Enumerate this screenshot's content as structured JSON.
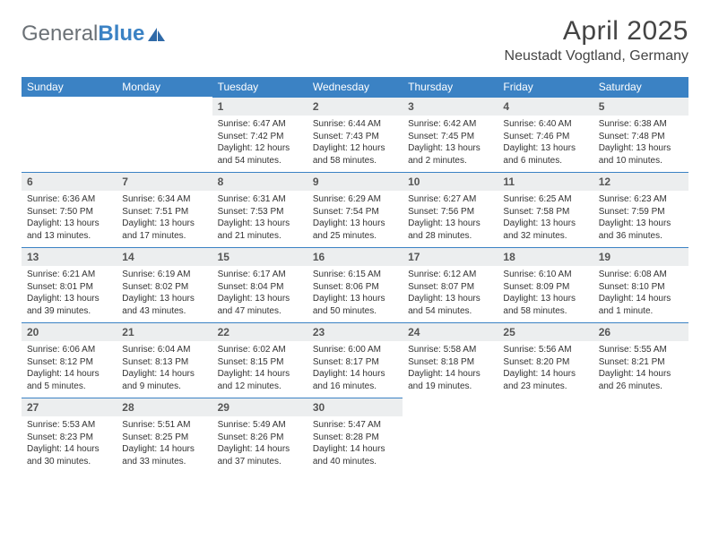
{
  "logo": {
    "text_general": "General",
    "text_blue": "Blue",
    "icon_color": "#2f6aa8"
  },
  "title": "April 2025",
  "location": "Neustadt Vogtland, Germany",
  "colors": {
    "header_bg": "#3b82c4",
    "header_text": "#ffffff",
    "daynum_bg": "#eceeef",
    "daynum_border": "#3b82c4",
    "body_bg": "#ffffff",
    "text": "#333333",
    "logo_gray": "#6b7176",
    "logo_blue": "#3b82c4"
  },
  "weekdays": [
    "Sunday",
    "Monday",
    "Tuesday",
    "Wednesday",
    "Thursday",
    "Friday",
    "Saturday"
  ],
  "rows": [
    [
      null,
      null,
      {
        "n": "1",
        "sr": "6:47 AM",
        "ss": "7:42 PM",
        "dl": "12 hours and 54 minutes."
      },
      {
        "n": "2",
        "sr": "6:44 AM",
        "ss": "7:43 PM",
        "dl": "12 hours and 58 minutes."
      },
      {
        "n": "3",
        "sr": "6:42 AM",
        "ss": "7:45 PM",
        "dl": "13 hours and 2 minutes."
      },
      {
        "n": "4",
        "sr": "6:40 AM",
        "ss": "7:46 PM",
        "dl": "13 hours and 6 minutes."
      },
      {
        "n": "5",
        "sr": "6:38 AM",
        "ss": "7:48 PM",
        "dl": "13 hours and 10 minutes."
      }
    ],
    [
      {
        "n": "6",
        "sr": "6:36 AM",
        "ss": "7:50 PM",
        "dl": "13 hours and 13 minutes."
      },
      {
        "n": "7",
        "sr": "6:34 AM",
        "ss": "7:51 PM",
        "dl": "13 hours and 17 minutes."
      },
      {
        "n": "8",
        "sr": "6:31 AM",
        "ss": "7:53 PM",
        "dl": "13 hours and 21 minutes."
      },
      {
        "n": "9",
        "sr": "6:29 AM",
        "ss": "7:54 PM",
        "dl": "13 hours and 25 minutes."
      },
      {
        "n": "10",
        "sr": "6:27 AM",
        "ss": "7:56 PM",
        "dl": "13 hours and 28 minutes."
      },
      {
        "n": "11",
        "sr": "6:25 AM",
        "ss": "7:58 PM",
        "dl": "13 hours and 32 minutes."
      },
      {
        "n": "12",
        "sr": "6:23 AM",
        "ss": "7:59 PM",
        "dl": "13 hours and 36 minutes."
      }
    ],
    [
      {
        "n": "13",
        "sr": "6:21 AM",
        "ss": "8:01 PM",
        "dl": "13 hours and 39 minutes."
      },
      {
        "n": "14",
        "sr": "6:19 AM",
        "ss": "8:02 PM",
        "dl": "13 hours and 43 minutes."
      },
      {
        "n": "15",
        "sr": "6:17 AM",
        "ss": "8:04 PM",
        "dl": "13 hours and 47 minutes."
      },
      {
        "n": "16",
        "sr": "6:15 AM",
        "ss": "8:06 PM",
        "dl": "13 hours and 50 minutes."
      },
      {
        "n": "17",
        "sr": "6:12 AM",
        "ss": "8:07 PM",
        "dl": "13 hours and 54 minutes."
      },
      {
        "n": "18",
        "sr": "6:10 AM",
        "ss": "8:09 PM",
        "dl": "13 hours and 58 minutes."
      },
      {
        "n": "19",
        "sr": "6:08 AM",
        "ss": "8:10 PM",
        "dl": "14 hours and 1 minute."
      }
    ],
    [
      {
        "n": "20",
        "sr": "6:06 AM",
        "ss": "8:12 PM",
        "dl": "14 hours and 5 minutes."
      },
      {
        "n": "21",
        "sr": "6:04 AM",
        "ss": "8:13 PM",
        "dl": "14 hours and 9 minutes."
      },
      {
        "n": "22",
        "sr": "6:02 AM",
        "ss": "8:15 PM",
        "dl": "14 hours and 12 minutes."
      },
      {
        "n": "23",
        "sr": "6:00 AM",
        "ss": "8:17 PM",
        "dl": "14 hours and 16 minutes."
      },
      {
        "n": "24",
        "sr": "5:58 AM",
        "ss": "8:18 PM",
        "dl": "14 hours and 19 minutes."
      },
      {
        "n": "25",
        "sr": "5:56 AM",
        "ss": "8:20 PM",
        "dl": "14 hours and 23 minutes."
      },
      {
        "n": "26",
        "sr": "5:55 AM",
        "ss": "8:21 PM",
        "dl": "14 hours and 26 minutes."
      }
    ],
    [
      {
        "n": "27",
        "sr": "5:53 AM",
        "ss": "8:23 PM",
        "dl": "14 hours and 30 minutes."
      },
      {
        "n": "28",
        "sr": "5:51 AM",
        "ss": "8:25 PM",
        "dl": "14 hours and 33 minutes."
      },
      {
        "n": "29",
        "sr": "5:49 AM",
        "ss": "8:26 PM",
        "dl": "14 hours and 37 minutes."
      },
      {
        "n": "30",
        "sr": "5:47 AM",
        "ss": "8:28 PM",
        "dl": "14 hours and 40 minutes."
      },
      null,
      null,
      null
    ]
  ],
  "labels": {
    "sunrise": "Sunrise:",
    "sunset": "Sunset:",
    "daylight": "Daylight:"
  }
}
